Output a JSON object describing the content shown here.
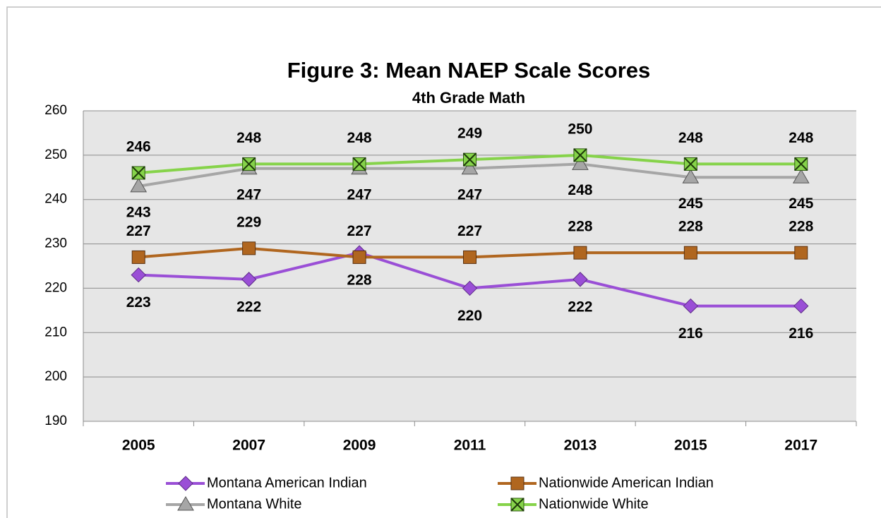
{
  "chart_data": {
    "type": "line",
    "title": "Figure 3:  Mean NAEP Scale Scores",
    "subtitle": "4th Grade Math",
    "categories": [
      "2005",
      "2007",
      "2009",
      "2011",
      "2013",
      "2015",
      "2017"
    ],
    "series": [
      {
        "name": "Montana American Indian",
        "color": "#9a4fd6",
        "values": [
          223,
          222,
          228,
          220,
          222,
          216,
          216
        ]
      },
      {
        "name": "Nationwide American Indian",
        "color": "#b0661f",
        "values": [
          227,
          229,
          227,
          227,
          228,
          228,
          228
        ]
      },
      {
        "name": "Montana White",
        "color": "#a6a6a6",
        "values": [
          243,
          247,
          247,
          247,
          248,
          245,
          245
        ]
      },
      {
        "name": "Nationwide White",
        "color": "#86d34a",
        "values": [
          246,
          248,
          248,
          249,
          250,
          248,
          248
        ]
      }
    ],
    "ylim": [
      190,
      260
    ],
    "yticks": [
      190,
      200,
      210,
      220,
      230,
      240,
      250,
      260
    ],
    "grid": true,
    "legend": "bottom"
  }
}
